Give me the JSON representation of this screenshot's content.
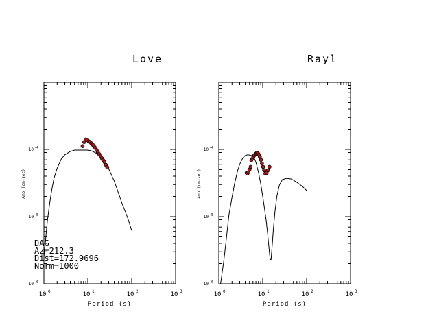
{
  "chart_data": [
    {
      "type": "scatter",
      "title": "Love",
      "xlabel": "Period (s)",
      "ylabel": "Amp (cm-sec)",
      "xscale": "log",
      "yscale": "log",
      "xlim": [
        1,
        1000
      ],
      "ylim": [
        1e-06,
        0.001
      ],
      "x_ticks": [
        {
          "base": "10",
          "exp": "0"
        },
        {
          "base": "10",
          "exp": "1"
        },
        {
          "base": "10",
          "exp": "2"
        },
        {
          "base": "10",
          "exp": "3"
        }
      ],
      "y_ticks": [
        {
          "base": "10",
          "exp": "-4"
        },
        {
          "base": "10",
          "exp": "-5"
        },
        {
          "base": "10",
          "exp": "-6"
        }
      ],
      "annotation": [
        "DAG",
        "Az=212.3",
        "Dist=172.9696",
        "Norm=1000"
      ],
      "series": [
        {
          "kind": "line",
          "x": [
            1.0,
            1.1,
            1.2,
            1.35,
            1.5,
            1.7,
            2.0,
            2.5,
            3.0,
            4.0,
            5.0,
            6.0,
            8.0,
            10.0,
            12.0,
            15.0,
            20.0,
            25.0,
            30.0,
            40.0,
            50.0,
            60.0,
            80.0,
            100.0
          ],
          "y": [
            2.5e-06,
            4.7e-06,
            8.7e-06,
            1.54e-05,
            2.45e-05,
            3.72e-05,
            5.25e-05,
            7.25e-05,
            8.32e-05,
            9.33e-05,
            9.77e-05,
            9.77e-05,
            9.77e-05,
            9.77e-05,
            9.55e-05,
            8.91e-05,
            7.94e-05,
            6.46e-05,
            5.13e-05,
            3.39e-05,
            2.24e-05,
            1.58e-05,
            9.8e-06,
            6.2e-06
          ]
        },
        {
          "kind": "points",
          "x": [
            7.6,
            8.3,
            9.0,
            9.8,
            10.5,
            11.3,
            12.1,
            13.0,
            13.9,
            14.9,
            15.9,
            17.0,
            18.2,
            19.5,
            20.9,
            22.4,
            24.0,
            25.8,
            27.8
          ],
          "y": [
            0.000112,
            0.000129,
            0.000141,
            0.000138,
            0.000132,
            0.000129,
            0.000123,
            0.000117,
            0.00011,
            0.000105,
            9.8e-05,
            9.1e-05,
            8.5e-05,
            7.9e-05,
            7.4e-05,
            6.9e-05,
            6.5e-05,
            5.9e-05,
            5.4e-05
          ]
        }
      ]
    },
    {
      "type": "scatter",
      "title": "Rayl",
      "xlabel": "Period (s)",
      "ylabel": "Amp (cm-sec)",
      "xscale": "log",
      "yscale": "log",
      "xlim": [
        1,
        1000
      ],
      "ylim": [
        1e-06,
        0.001
      ],
      "x_ticks": [
        {
          "base": "10",
          "exp": "0"
        },
        {
          "base": "10",
          "exp": "1"
        },
        {
          "base": "10",
          "exp": "2"
        },
        {
          "base": "10",
          "exp": "3"
        }
      ],
      "y_ticks": [
        {
          "base": "10",
          "exp": "-4"
        },
        {
          "base": "10",
          "exp": "-5"
        },
        {
          "base": "10",
          "exp": "-6"
        }
      ],
      "series": [
        {
          "kind": "line",
          "x": [
            1.1,
            1.3,
            1.5,
            1.7,
            2.0,
            2.3,
            2.7,
            3.0,
            3.5,
            4.0,
            4.6,
            5.5,
            6.3,
            7.0,
            8.0,
            9.0,
            10.0,
            11.0,
            12.0,
            13.0,
            14.0,
            14.8,
            15.5,
            16.5,
            17.5,
            19.0,
            21.0,
            24.0,
            28.0,
            35.0,
            45.0,
            60.0,
            80.0,
            100.0
          ],
          "y": [
            1e-06,
            2.2e-06,
            5e-06,
            1.05e-05,
            1.95e-05,
            3.16e-05,
            4.9e-05,
            6.03e-05,
            7.41e-05,
            8.13e-05,
            8.32e-05,
            8.13e-05,
            7.58e-05,
            6.46e-05,
            4.57e-05,
            3.09e-05,
            2e-05,
            1.32e-05,
            8.7e-06,
            5.4e-06,
            3.2e-06,
            2.3e-06,
            2.3e-06,
            3.8e-06,
            6.6e-06,
            1.17e-05,
            2e-05,
            2.95e-05,
            3.55e-05,
            3.72e-05,
            3.63e-05,
            3.24e-05,
            2.82e-05,
            2.45e-05
          ]
        },
        {
          "kind": "points",
          "x": [
            4.3,
            4.5,
            4.7,
            5.0,
            5.3,
            5.5,
            5.8,
            6.1,
            6.4,
            6.8,
            7.1,
            7.4,
            7.8,
            8.2,
            8.6,
            9.1,
            9.6,
            10.2,
            10.8,
            11.5,
            12.3,
            13.2,
            14.3
          ],
          "y": [
            4.47e-05,
            4.37e-05,
            4.57e-05,
            5.01e-05,
            5.5e-05,
            6.92e-05,
            7.24e-05,
            7.76e-05,
            8.13e-05,
            8.51e-05,
            8.71e-05,
            8.91e-05,
            8.71e-05,
            8.32e-05,
            7.76e-05,
            7e-05,
            6.17e-05,
            5.5e-05,
            4.9e-05,
            4.37e-05,
            4.47e-05,
            4.9e-05,
            5.5e-05
          ]
        }
      ]
    }
  ]
}
